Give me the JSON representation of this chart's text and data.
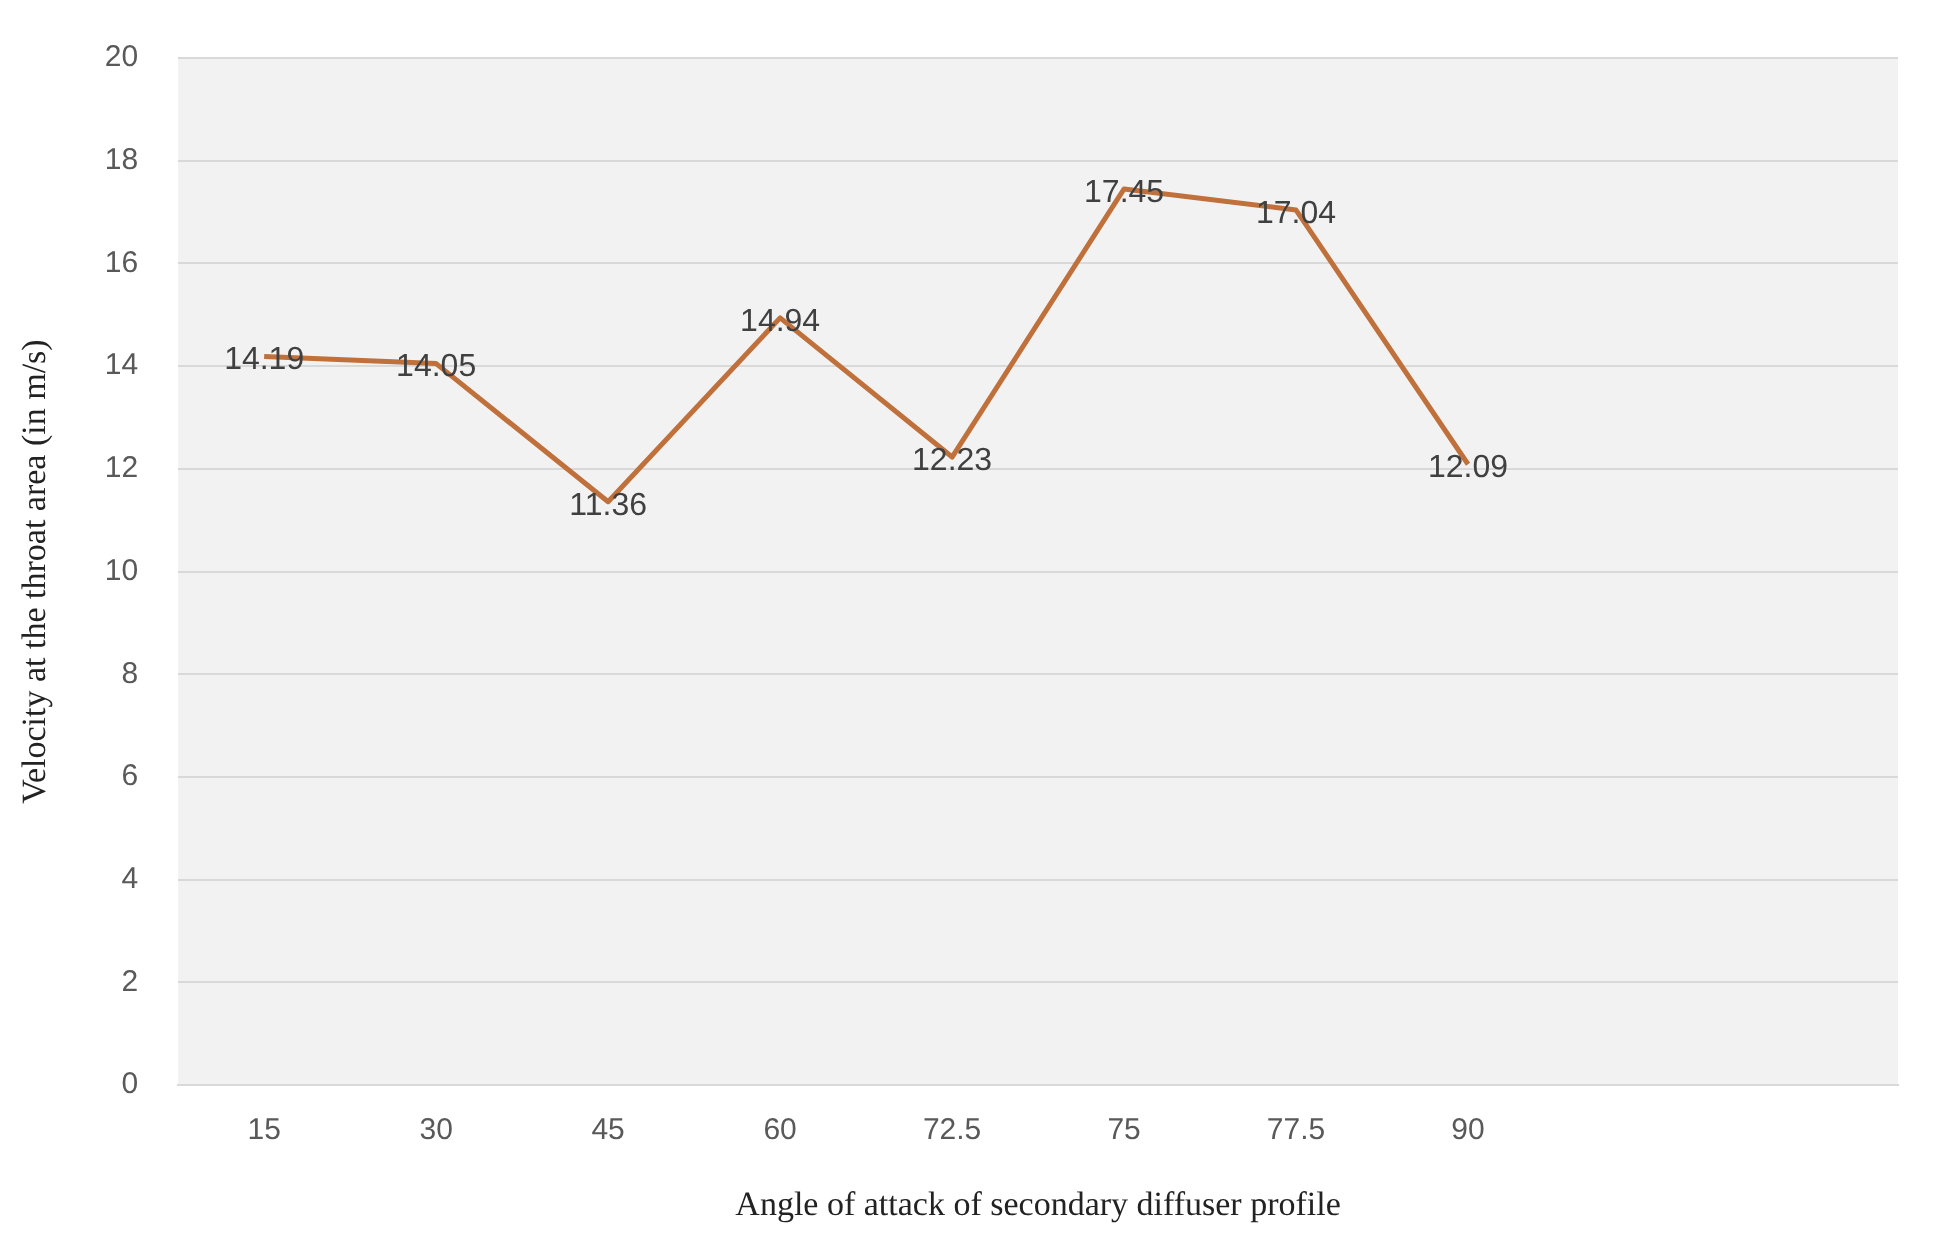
{
  "chart_data": {
    "type": "line",
    "xlabel": "Angle of attack of secondary diffuser profile",
    "ylabel": "Velocity at the throat area (in m/s)",
    "categories": [
      "15",
      "30",
      "45",
      "60",
      "72.5",
      "75",
      "77.5",
      "90",
      null,
      null
    ],
    "series": [
      {
        "color": "#c0703a",
        "values": [
          14.19,
          14.05,
          11.36,
          14.94,
          12.23,
          17.45,
          17.04,
          12.09,
          null,
          null
        ]
      }
    ],
    "ylim": [
      0,
      20
    ],
    "yticks": [
      0,
      2,
      4,
      6,
      8,
      10,
      12,
      14,
      16,
      18,
      20
    ],
    "grid": "y",
    "legend": false,
    "marker": "none",
    "line_style": "solid",
    "data_labels": true
  }
}
